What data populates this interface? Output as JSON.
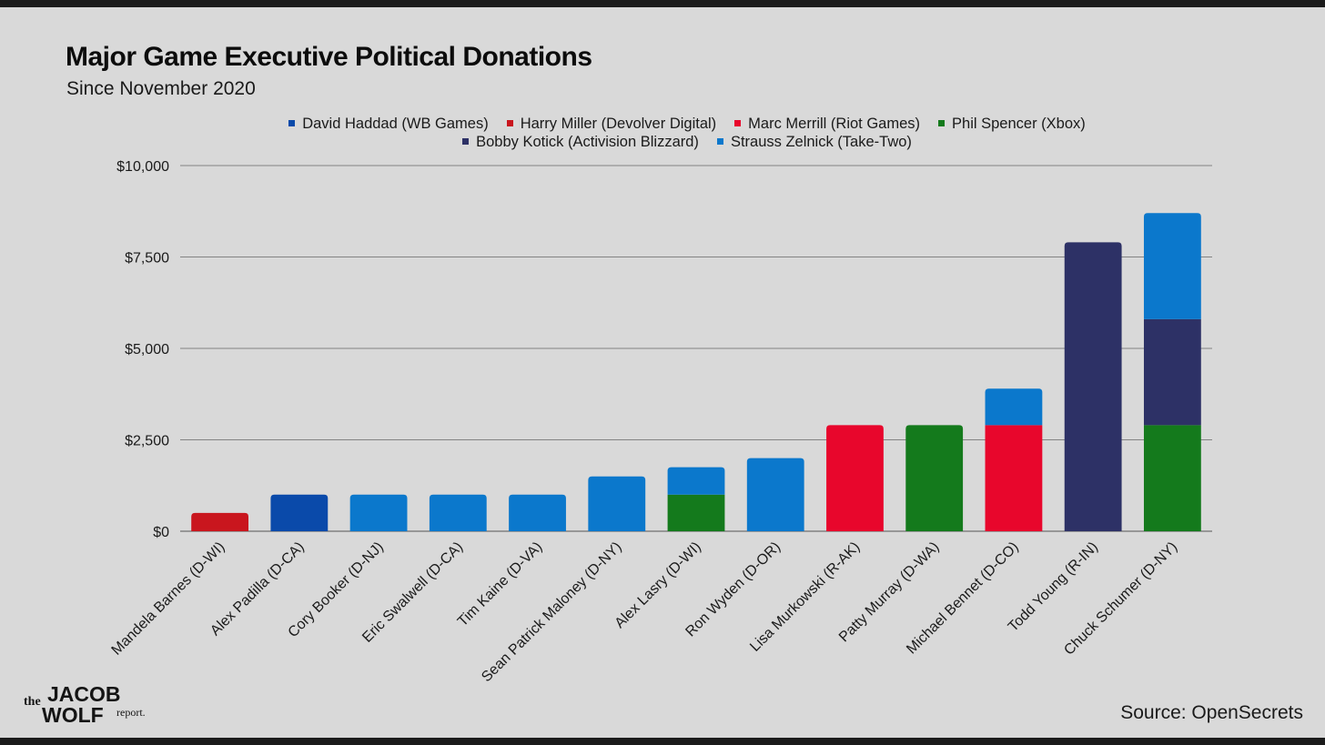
{
  "header": {
    "title": "Major Game Executive Political Donations",
    "subtitle": "Since November 2020"
  },
  "legend": {
    "row1": [
      {
        "label": "David Haddad (WB Games)",
        "color": "#0a4aaa"
      },
      {
        "label": "Harry Miller (Devolver Digital)",
        "color": "#c9161e"
      },
      {
        "label": "Marc Merrill (Riot Games)",
        "color": "#e8062c"
      },
      {
        "label": "Phil Spencer (Xbox)",
        "color": "#147a1c"
      }
    ],
    "row2": [
      {
        "label": "Bobby Kotick (Activision Blizzard)",
        "color": "#2d3166"
      },
      {
        "label": "Strauss Zelnick (Take-Two)",
        "color": "#0b78cc"
      }
    ]
  },
  "chart_data": {
    "type": "bar",
    "stacked": true,
    "categories": [
      "Mandela Barnes (D-WI)",
      "Alex Padilla (D-CA)",
      "Cory Booker (D-NJ)",
      "Eric Swalwell (D-CA)",
      "Tim Kaine (D-VA)",
      "Sean Patrick Maloney (D-NY)",
      "Alex Lasry (D-WI)",
      "Ron Wyden (D-OR)",
      "Lisa Murkowski (R-AK)",
      "Patty Murray (D-WA)",
      "Michael Bennet (D-CO)",
      "Todd Young (R-IN)",
      "Chuck Schumer (D-NY)"
    ],
    "series": [
      {
        "name": "David Haddad (WB Games)",
        "color": "#0a4aaa",
        "values": [
          0,
          1000,
          0,
          0,
          0,
          0,
          0,
          0,
          0,
          0,
          0,
          0,
          0
        ]
      },
      {
        "name": "Harry Miller (Devolver Digital)",
        "color": "#c9161e",
        "values": [
          500,
          0,
          0,
          0,
          0,
          0,
          0,
          0,
          0,
          0,
          0,
          0,
          0
        ]
      },
      {
        "name": "Marc Merrill (Riot Games)",
        "color": "#e8062c",
        "values": [
          0,
          0,
          0,
          0,
          0,
          0,
          0,
          0,
          2900,
          0,
          2900,
          0,
          0
        ]
      },
      {
        "name": "Phil Spencer (Xbox)",
        "color": "#147a1c",
        "values": [
          0,
          0,
          0,
          0,
          0,
          0,
          1000,
          0,
          0,
          2900,
          0,
          0,
          2900
        ]
      },
      {
        "name": "Bobby Kotick (Activision Blizzard)",
        "color": "#2d3166",
        "values": [
          0,
          0,
          0,
          0,
          0,
          0,
          0,
          0,
          0,
          0,
          0,
          7900,
          2900
        ]
      },
      {
        "name": "Strauss Zelnick (Take-Two)",
        "color": "#0b78cc",
        "values": [
          0,
          0,
          1000,
          1000,
          1000,
          1500,
          750,
          2000,
          0,
          0,
          1000,
          0,
          2900
        ]
      }
    ],
    "yticks": [
      "$0",
      "$2,500",
      "$5,000",
      "$7,500",
      "$10,000"
    ],
    "ylim": [
      0,
      10000
    ],
    "grid": true,
    "legend_position": "top"
  },
  "footer": {
    "source": "Source: OpenSecrets",
    "logo": {
      "the": "the",
      "word1": "JACOB",
      "word2": "WOLF",
      "word3": "report."
    }
  }
}
